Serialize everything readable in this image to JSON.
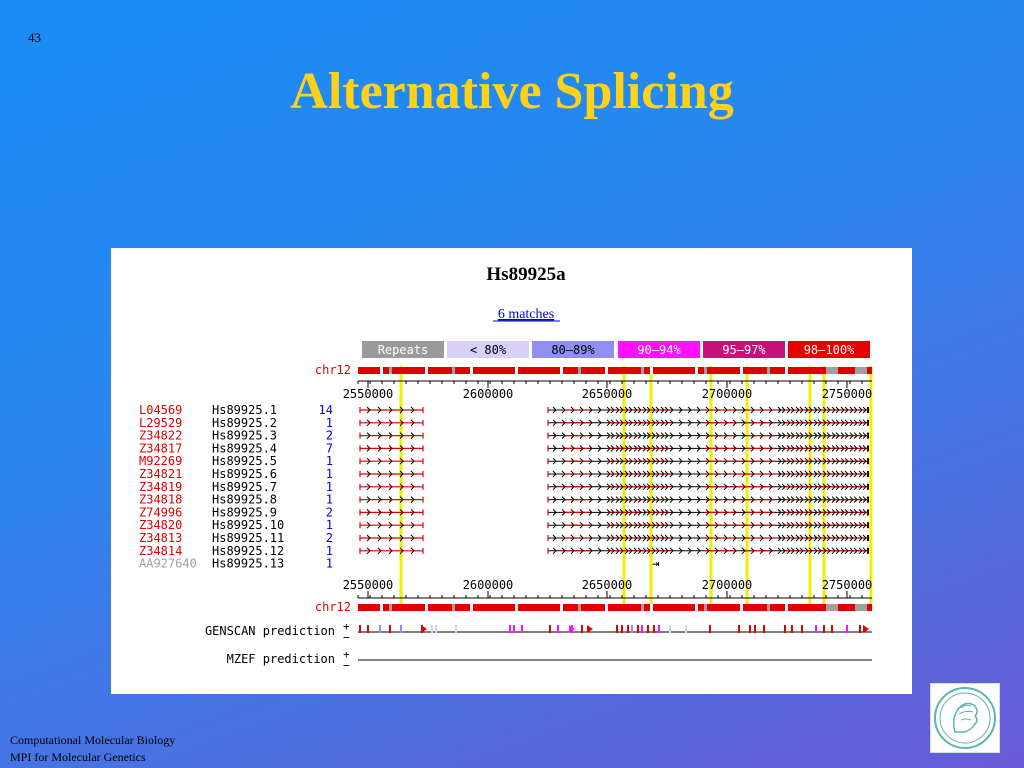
{
  "slide": {
    "number": "43",
    "title": "Alternative Splicing",
    "footer": {
      "line1": "Computational Molecular Biology",
      "line2": "MPI for Molecular Genetics"
    }
  },
  "figure": {
    "title": "Hs89925a",
    "matches_link": "6 matches",
    "legend": [
      {
        "label": "Repeats",
        "color": "#9a9a9a",
        "text_color": "#ffffff"
      },
      {
        "label": "< 80%",
        "color": "#d8d0f8",
        "text_color": "#000000"
      },
      {
        "label": "80–89%",
        "color": "#9090f0",
        "text_color": "#000000"
      },
      {
        "label": "90–94%",
        "color": "#ff10ff",
        "text_color": "#ffffff"
      },
      {
        "label": "95–97%",
        "color": "#c8107a",
        "text_color": "#ffffff"
      },
      {
        "label": "98–100%",
        "color": "#e80000",
        "text_color": "#ffffff"
      }
    ],
    "chromosome": "chr12",
    "axis_ticks": [
      "2550000",
      "2600000",
      "2650000",
      "2700000",
      "2750000"
    ],
    "rows": [
      {
        "acc": "L04569",
        "id": "Hs89925.1",
        "count": "14",
        "gray": false,
        "variant": 0
      },
      {
        "acc": "L29529",
        "id": "Hs89925.2",
        "count": "1",
        "gray": false,
        "variant": 0
      },
      {
        "acc": "Z34822",
        "id": "Hs89925.3",
        "count": "2",
        "gray": false,
        "variant": 1
      },
      {
        "acc": "Z34817",
        "id": "Hs89925.4",
        "count": "7",
        "gray": false,
        "variant": 0
      },
      {
        "acc": "M92269",
        "id": "Hs89925.5",
        "count": "1",
        "gray": false,
        "variant": 2
      },
      {
        "acc": "Z34821",
        "id": "Hs89925.6",
        "count": "1",
        "gray": false,
        "variant": 2
      },
      {
        "acc": "Z34819",
        "id": "Hs89925.7",
        "count": "1",
        "gray": false,
        "variant": 2
      },
      {
        "acc": "Z34818",
        "id": "Hs89925.8",
        "count": "1",
        "gray": false,
        "variant": 2
      },
      {
        "acc": "Z74996",
        "id": "Hs89925.9",
        "count": "2",
        "gray": false,
        "variant": 1
      },
      {
        "acc": "Z34820",
        "id": "Hs89925.10",
        "count": "1",
        "gray": false,
        "variant": 2
      },
      {
        "acc": "Z34813",
        "id": "Hs89925.11",
        "count": "2",
        "gray": false,
        "variant": 1
      },
      {
        "acc": "Z34814",
        "id": "Hs89925.12",
        "count": "1",
        "gray": false,
        "variant": 0
      },
      {
        "acc": "AA927640",
        "id": "Hs89925.13",
        "count": "1",
        "gray": true,
        "variant": 3
      }
    ],
    "predictions": [
      {
        "label": "GENSCAN prediction"
      },
      {
        "label": "MZEF prediction"
      }
    ],
    "strand_plus": "+",
    "strand_minus": "−",
    "colors": {
      "accession": "#e00000",
      "count": "#0000e0",
      "gray": "#a0a0a0",
      "yellow": "#f0f000"
    }
  }
}
